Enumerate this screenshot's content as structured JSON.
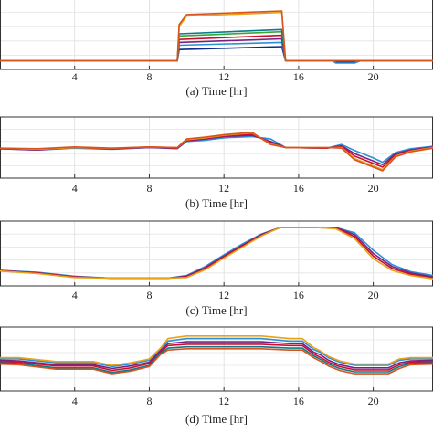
{
  "chart_data": [
    {
      "type": "line",
      "caption": "(a) Time [hr]",
      "x_ticks": [
        4,
        8,
        12,
        16,
        20
      ],
      "xlim": [
        0,
        23.2
      ],
      "ylim": [
        0,
        1
      ],
      "grid": true,
      "series": [
        {
          "color": "#0a2a8c",
          "x": [
            0,
            9.5,
            9.6,
            15.1,
            15.3,
            17.8,
            18.0,
            19.0,
            19.3,
            23.2
          ],
          "y": [
            0.12,
            0.12,
            0.28,
            0.32,
            0.12,
            0.12,
            0.1,
            0.1,
            0.12,
            0.12
          ]
        },
        {
          "color": "#2c8fd6",
          "x": [
            0,
            9.5,
            9.6,
            15.1,
            15.3,
            17.8,
            18.0,
            19.0,
            19.3,
            23.2
          ],
          "y": [
            0.12,
            0.12,
            0.34,
            0.38,
            0.12,
            0.12,
            0.09,
            0.09,
            0.12,
            0.12
          ]
        },
        {
          "color": "#7a2280",
          "x": [
            0,
            9.5,
            9.6,
            15.1,
            15.3,
            23.2
          ],
          "y": [
            0.12,
            0.12,
            0.38,
            0.43,
            0.12,
            0.12
          ]
        },
        {
          "color": "#c8102e",
          "x": [
            0,
            9.5,
            9.6,
            15.1,
            15.3,
            23.2
          ],
          "y": [
            0.12,
            0.12,
            0.42,
            0.48,
            0.12,
            0.12
          ]
        },
        {
          "color": "#3aa537",
          "x": [
            0,
            9.5,
            9.6,
            15.1,
            15.3,
            23.2
          ],
          "y": [
            0.12,
            0.12,
            0.47,
            0.53,
            0.12,
            0.12
          ]
        },
        {
          "color": "#0b7a8a",
          "x": [
            0,
            9.5,
            9.6,
            15.1,
            15.3,
            23.2
          ],
          "y": [
            0.12,
            0.12,
            0.5,
            0.56,
            0.12,
            0.12
          ]
        },
        {
          "color": "#e8a317",
          "x": [
            0,
            9.5,
            9.6,
            10.0,
            15.1,
            15.3,
            23.2
          ],
          "y": [
            0.12,
            0.12,
            0.6,
            0.75,
            0.8,
            0.12,
            0.12
          ]
        },
        {
          "color": "#d9531e",
          "x": [
            0,
            9.5,
            9.6,
            10.0,
            15.1,
            15.3,
            23.2
          ],
          "y": [
            0.12,
            0.12,
            0.63,
            0.77,
            0.82,
            0.12,
            0.12
          ]
        }
      ]
    },
    {
      "type": "line",
      "caption": "(b) Time [hr]",
      "x_ticks": [
        4,
        8,
        12,
        16,
        20
      ],
      "xlim": [
        0,
        23.2
      ],
      "ylim": [
        0,
        1
      ],
      "grid": true,
      "series": [
        {
          "color": "#2c8fd6",
          "x": [
            0,
            2,
            4,
            6,
            8,
            9.5,
            10,
            11,
            12,
            13.5,
            14.5,
            15.3,
            17.5,
            18.3,
            19,
            20,
            20.5,
            21.2,
            22,
            23.2
          ],
          "y": [
            0.48,
            0.46,
            0.49,
            0.47,
            0.5,
            0.48,
            0.6,
            0.62,
            0.66,
            0.68,
            0.64,
            0.5,
            0.49,
            0.55,
            0.45,
            0.33,
            0.26,
            0.42,
            0.48,
            0.52
          ]
        },
        {
          "color": "#7a2280",
          "x": [
            0,
            2,
            4,
            6,
            8,
            9.5,
            10,
            11,
            12,
            13.5,
            14.5,
            15.3,
            17.5,
            18.3,
            19,
            20,
            20.5,
            21.2,
            22,
            23.2
          ],
          "y": [
            0.48,
            0.46,
            0.5,
            0.48,
            0.5,
            0.49,
            0.61,
            0.64,
            0.68,
            0.7,
            0.6,
            0.5,
            0.49,
            0.53,
            0.4,
            0.28,
            0.22,
            0.4,
            0.46,
            0.51
          ]
        },
        {
          "color": "#c8102e",
          "x": [
            0,
            2,
            4,
            6,
            8,
            9.5,
            10,
            11,
            12,
            13.5,
            14.5,
            15.3,
            17.5,
            18.3,
            19,
            20,
            20.5,
            21.2,
            22,
            23.2
          ],
          "y": [
            0.49,
            0.47,
            0.5,
            0.48,
            0.51,
            0.49,
            0.62,
            0.65,
            0.69,
            0.72,
            0.58,
            0.5,
            0.49,
            0.52,
            0.36,
            0.24,
            0.18,
            0.38,
            0.45,
            0.5
          ]
        },
        {
          "color": "#e8a317",
          "x": [
            0,
            2,
            4,
            6,
            8,
            9.5,
            10,
            11,
            12,
            13.5,
            14.5,
            15.3,
            17.5,
            18.3,
            19,
            20,
            20.5,
            21.2,
            22,
            23.2
          ],
          "y": [
            0.49,
            0.47,
            0.5,
            0.49,
            0.51,
            0.5,
            0.63,
            0.66,
            0.7,
            0.74,
            0.56,
            0.5,
            0.5,
            0.5,
            0.32,
            0.2,
            0.14,
            0.36,
            0.44,
            0.5
          ]
        },
        {
          "color": "#d9531e",
          "x": [
            0,
            2,
            4,
            6,
            8,
            9.5,
            10,
            11,
            12,
            13.5,
            14.5,
            15.3,
            17.5,
            18.3,
            19,
            20,
            20.5,
            21.2,
            22,
            23.2
          ],
          "y": [
            0.49,
            0.48,
            0.51,
            0.49,
            0.51,
            0.5,
            0.64,
            0.67,
            0.71,
            0.75,
            0.55,
            0.5,
            0.5,
            0.49,
            0.3,
            0.18,
            0.12,
            0.35,
            0.43,
            0.49
          ]
        }
      ]
    },
    {
      "type": "line",
      "caption": "(c) Time [hr]",
      "x_ticks": [
        4,
        8,
        12,
        16,
        20
      ],
      "xlim": [
        0,
        23.2
      ],
      "ylim": [
        0,
        1
      ],
      "grid": true,
      "series": [
        {
          "color": "#2c8fd6",
          "x": [
            0,
            2,
            4,
            6,
            8,
            9,
            10,
            11,
            12,
            13,
            14,
            15,
            16,
            17,
            18,
            19,
            20,
            21,
            22,
            23.2
          ],
          "y": [
            0.24,
            0.21,
            0.15,
            0.12,
            0.12,
            0.12,
            0.16,
            0.3,
            0.48,
            0.65,
            0.8,
            0.9,
            0.9,
            0.9,
            0.9,
            0.82,
            0.55,
            0.33,
            0.22,
            0.16
          ]
        },
        {
          "color": "#7a2280",
          "x": [
            0,
            2,
            4,
            6,
            8,
            9,
            10,
            11,
            12,
            13,
            14,
            15,
            16,
            17,
            18,
            19,
            20,
            21,
            22,
            23.2
          ],
          "y": [
            0.24,
            0.2,
            0.14,
            0.12,
            0.12,
            0.12,
            0.15,
            0.28,
            0.46,
            0.63,
            0.79,
            0.9,
            0.9,
            0.9,
            0.9,
            0.79,
            0.5,
            0.3,
            0.2,
            0.14
          ]
        },
        {
          "color": "#c8102e",
          "x": [
            0,
            2,
            4,
            6,
            8,
            9,
            10,
            11,
            12,
            13,
            14,
            15,
            16,
            17,
            18,
            19,
            20,
            21,
            22,
            23.2
          ],
          "y": [
            0.23,
            0.2,
            0.14,
            0.12,
            0.12,
            0.12,
            0.14,
            0.27,
            0.45,
            0.62,
            0.78,
            0.9,
            0.9,
            0.9,
            0.89,
            0.76,
            0.46,
            0.27,
            0.18,
            0.12
          ]
        },
        {
          "color": "#e8a317",
          "x": [
            0,
            2,
            4,
            6,
            8,
            9,
            10,
            11,
            12,
            13,
            14,
            15,
            16,
            17,
            18,
            19,
            20,
            21,
            22,
            23.2
          ],
          "y": [
            0.23,
            0.19,
            0.13,
            0.12,
            0.12,
            0.12,
            0.13,
            0.25,
            0.43,
            0.6,
            0.77,
            0.9,
            0.9,
            0.9,
            0.88,
            0.73,
            0.42,
            0.24,
            0.16,
            0.11
          ]
        }
      ]
    },
    {
      "type": "line",
      "caption": "(d) Time [hr]",
      "x_ticks": [
        4,
        8,
        12,
        16,
        20
      ],
      "xlim": [
        0,
        23.2
      ],
      "ylim": [
        0,
        1
      ],
      "grid": true,
      "series": [
        {
          "color": "#2c8fd6",
          "x": [
            0,
            1,
            3,
            5,
            6,
            7,
            8,
            8.6,
            9,
            10,
            12,
            14,
            15.5,
            16.2,
            16.8,
            17.2,
            17.6,
            18.2,
            19,
            20,
            20.8,
            21.4,
            22,
            23.2
          ],
          "y": [
            0.5,
            0.5,
            0.44,
            0.44,
            0.38,
            0.42,
            0.48,
            0.65,
            0.78,
            0.82,
            0.82,
            0.82,
            0.78,
            0.78,
            0.65,
            0.6,
            0.52,
            0.45,
            0.4,
            0.4,
            0.4,
            0.48,
            0.5,
            0.5
          ]
        },
        {
          "color": "#7a2280",
          "x": [
            0,
            1,
            3,
            5,
            6,
            7,
            8,
            8.6,
            9,
            10,
            12,
            14,
            15.5,
            16.2,
            16.8,
            17.2,
            17.6,
            18.2,
            19,
            20,
            20.8,
            21.4,
            22,
            23.2
          ],
          "y": [
            0.48,
            0.47,
            0.41,
            0.41,
            0.35,
            0.39,
            0.45,
            0.63,
            0.74,
            0.77,
            0.77,
            0.77,
            0.74,
            0.74,
            0.61,
            0.56,
            0.48,
            0.41,
            0.36,
            0.36,
            0.36,
            0.44,
            0.47,
            0.48
          ]
        },
        {
          "color": "#c8102e",
          "x": [
            0,
            1,
            3,
            5,
            6,
            7,
            8,
            8.6,
            9,
            10,
            12,
            14,
            15.5,
            16.2,
            16.8,
            17.2,
            17.6,
            18.2,
            19,
            20,
            20.8,
            21.4,
            22,
            23.2
          ],
          "y": [
            0.46,
            0.45,
            0.39,
            0.39,
            0.32,
            0.36,
            0.43,
            0.61,
            0.71,
            0.73,
            0.73,
            0.73,
            0.71,
            0.71,
            0.58,
            0.52,
            0.45,
            0.38,
            0.33,
            0.33,
            0.33,
            0.41,
            0.45,
            0.46
          ]
        },
        {
          "color": "#0b7a8a",
          "x": [
            0,
            1,
            3,
            5,
            6,
            7,
            8,
            8.6,
            9,
            10,
            12,
            14,
            15.5,
            16.2,
            16.8,
            17.2,
            17.6,
            18.2,
            19,
            20,
            20.8,
            21.4,
            22,
            23.2
          ],
          "y": [
            0.44,
            0.43,
            0.36,
            0.36,
            0.29,
            0.33,
            0.4,
            0.59,
            0.67,
            0.69,
            0.69,
            0.69,
            0.67,
            0.67,
            0.55,
            0.49,
            0.42,
            0.35,
            0.3,
            0.3,
            0.3,
            0.38,
            0.43,
            0.44
          ]
        },
        {
          "color": "#e8a317",
          "x": [
            0,
            1,
            3,
            5,
            6,
            7,
            8,
            8.6,
            9,
            10,
            12,
            14,
            15.5,
            16.2,
            16.8,
            17.2,
            17.6,
            18.2,
            19,
            20,
            20.8,
            21.4,
            22,
            23.2
          ],
          "y": [
            0.52,
            0.52,
            0.46,
            0.46,
            0.4,
            0.44,
            0.5,
            0.67,
            0.82,
            0.86,
            0.86,
            0.86,
            0.82,
            0.82,
            0.68,
            0.62,
            0.54,
            0.47,
            0.42,
            0.42,
            0.42,
            0.5,
            0.52,
            0.52
          ]
        },
        {
          "color": "#d9531e",
          "x": [
            0,
            1,
            3,
            5,
            6,
            7,
            8,
            8.6,
            9,
            10,
            12,
            14,
            15.5,
            16.2,
            16.8,
            17.2,
            17.6,
            18.2,
            19,
            20,
            20.8,
            21.4,
            22,
            23.2
          ],
          "y": [
            0.42,
            0.41,
            0.34,
            0.34,
            0.27,
            0.31,
            0.38,
            0.57,
            0.64,
            0.66,
            0.66,
            0.66,
            0.64,
            0.64,
            0.52,
            0.46,
            0.39,
            0.32,
            0.27,
            0.27,
            0.27,
            0.35,
            0.41,
            0.42
          ]
        }
      ]
    }
  ]
}
